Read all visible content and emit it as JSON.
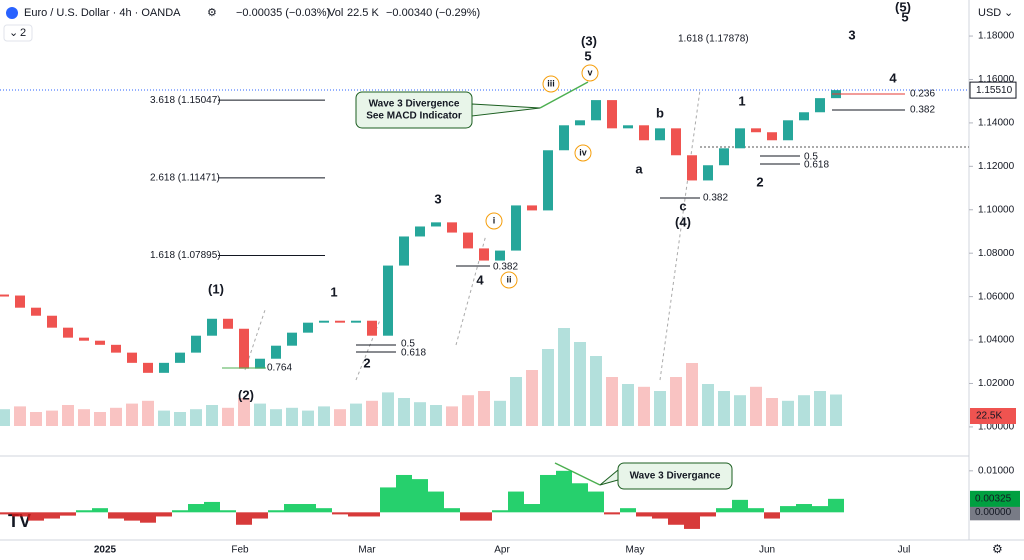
{
  "header": {
    "symbol": "Euro / U.S. Dollar · 4h · OANDA",
    "change": "−0.00035 (−0.03%)",
    "volume_label": "Vol",
    "volume": "22.5 K",
    "macd_change": "−0.00340 (−0.29%)",
    "interval_step": "2",
    "currency": "USD"
  },
  "chart_data": {
    "type": "candlestick",
    "values": [
      1.0605,
      1.0549,
      1.0512,
      1.0457,
      1.0411,
      1.0397,
      1.0378,
      1.0342,
      1.0295,
      1.0249,
      1.0295,
      1.0342,
      1.042,
      1.0498,
      1.0452,
      1.0268,
      1.0314,
      1.0374,
      1.0434,
      1.048,
      1.0489,
      1.048,
      1.0489,
      1.042,
      1.0743,
      1.0877,
      1.0923,
      1.0942,
      1.0895,
      1.0822,
      1.0766,
      1.0812,
      1.102,
      1.0997,
      1.1274,
      1.1389,
      1.1412,
      1.1505,
      1.1375,
      1.1389,
      1.132,
      1.1375,
      1.1251,
      1.1135,
      1.1205,
      1.1283,
      1.1375,
      1.1357,
      1.132,
      1.1412,
      1.1449,
      1.1514,
      1.1551
    ],
    "up_color": "#26a69a",
    "down_color": "#ef5350",
    "ylim": [
      0.9866,
      1.1966
    ],
    "yticks": [
      {
        "value": 1.0,
        "label": "1.00000"
      },
      {
        "value": 1.02,
        "label": "1.02000"
      },
      {
        "value": 1.04,
        "label": "1.04000"
      },
      {
        "value": 1.06,
        "label": "1.06000"
      },
      {
        "value": 1.08,
        "label": "1.08000"
      },
      {
        "value": 1.1,
        "label": "1.10000"
      },
      {
        "value": 1.12,
        "label": "1.12000"
      },
      {
        "value": 1.14,
        "label": "1.14000"
      },
      {
        "value": 1.16,
        "label": "1.16000"
      },
      {
        "value": 1.18,
        "label": "1.18000"
      }
    ],
    "current_price": {
      "value": 1.1551,
      "label": "1.15510"
    },
    "x_axis_labels": [
      "2025",
      "Feb",
      "Mar",
      "Apr",
      "May",
      "Jun",
      "Jul"
    ],
    "volume": [
      12,
      14,
      10,
      11,
      15,
      12,
      10,
      13,
      16,
      18,
      11,
      10,
      12,
      15,
      13,
      20,
      16,
      12,
      13,
      11,
      14,
      12,
      16,
      18,
      24,
      20,
      17,
      15,
      14,
      22,
      25,
      18,
      35,
      40,
      55,
      70,
      60,
      50,
      35,
      30,
      28,
      25,
      35,
      45,
      30,
      25,
      22,
      28,
      20,
      18,
      22,
      25,
      22.5
    ],
    "volume_badge": "22.5K",
    "fib_levels": [
      {
        "label": "1.618 (1.17878)",
        "value": 1.17878
      },
      {
        "label": "3.618 (1.15047)",
        "value": 1.15047
      },
      {
        "label": "2.618 (1.11471)",
        "value": 1.11471
      },
      {
        "label": "1.618 (1.07895)",
        "value": 1.07895
      }
    ],
    "wave_labels": [
      "(1)",
      "(2)",
      "(3)",
      "(4)",
      "(5)",
      "1",
      "2",
      "3",
      "4",
      "5",
      "a",
      "b",
      "c",
      "1",
      "2",
      "3",
      "4",
      "5",
      "iii",
      "v",
      "iv",
      "i",
      "ii"
    ],
    "fib_ratio_labels": [
      "0.5",
      "0.618",
      "0.764",
      "0.382",
      "0.382",
      "0.5",
      "0.618",
      "0.236",
      "0.382"
    ],
    "callouts": [
      "Wave 3 Divergence",
      "See MACD Indicator"
    ],
    "macd": {
      "type": "bar",
      "values": [
        -0.0005,
        -0.001,
        -0.002,
        -0.0015,
        -0.0008,
        0.0005,
        0.001,
        -0.0015,
        -0.002,
        -0.0025,
        -0.001,
        0.0005,
        0.002,
        0.0025,
        0.0005,
        -0.003,
        -0.0015,
        0.0005,
        0.002,
        0.002,
        0.001,
        -0.0005,
        -0.001,
        -0.001,
        0.006,
        0.009,
        0.008,
        0.005,
        0.001,
        -0.002,
        -0.002,
        0.0005,
        0.005,
        0.002,
        0.009,
        0.01,
        0.007,
        0.005,
        -0.0005,
        0.001,
        -0.001,
        -0.0015,
        -0.003,
        -0.004,
        -0.001,
        0.001,
        0.003,
        0.001,
        -0.0015,
        0.0015,
        0.002,
        0.0015,
        0.00325
      ],
      "up_color": "#00c853",
      "down_color": "#d01818",
      "ylim": [
        -0.00667,
        0.01357
      ],
      "yticks": [
        {
          "value": 0.01,
          "label": "0.01000"
        },
        {
          "value": 0,
          "label": "0.00000"
        }
      ],
      "last_value": {
        "value": 0.00325,
        "label": "0.00325"
      },
      "callout": "Wave 3 Divergance"
    }
  }
}
